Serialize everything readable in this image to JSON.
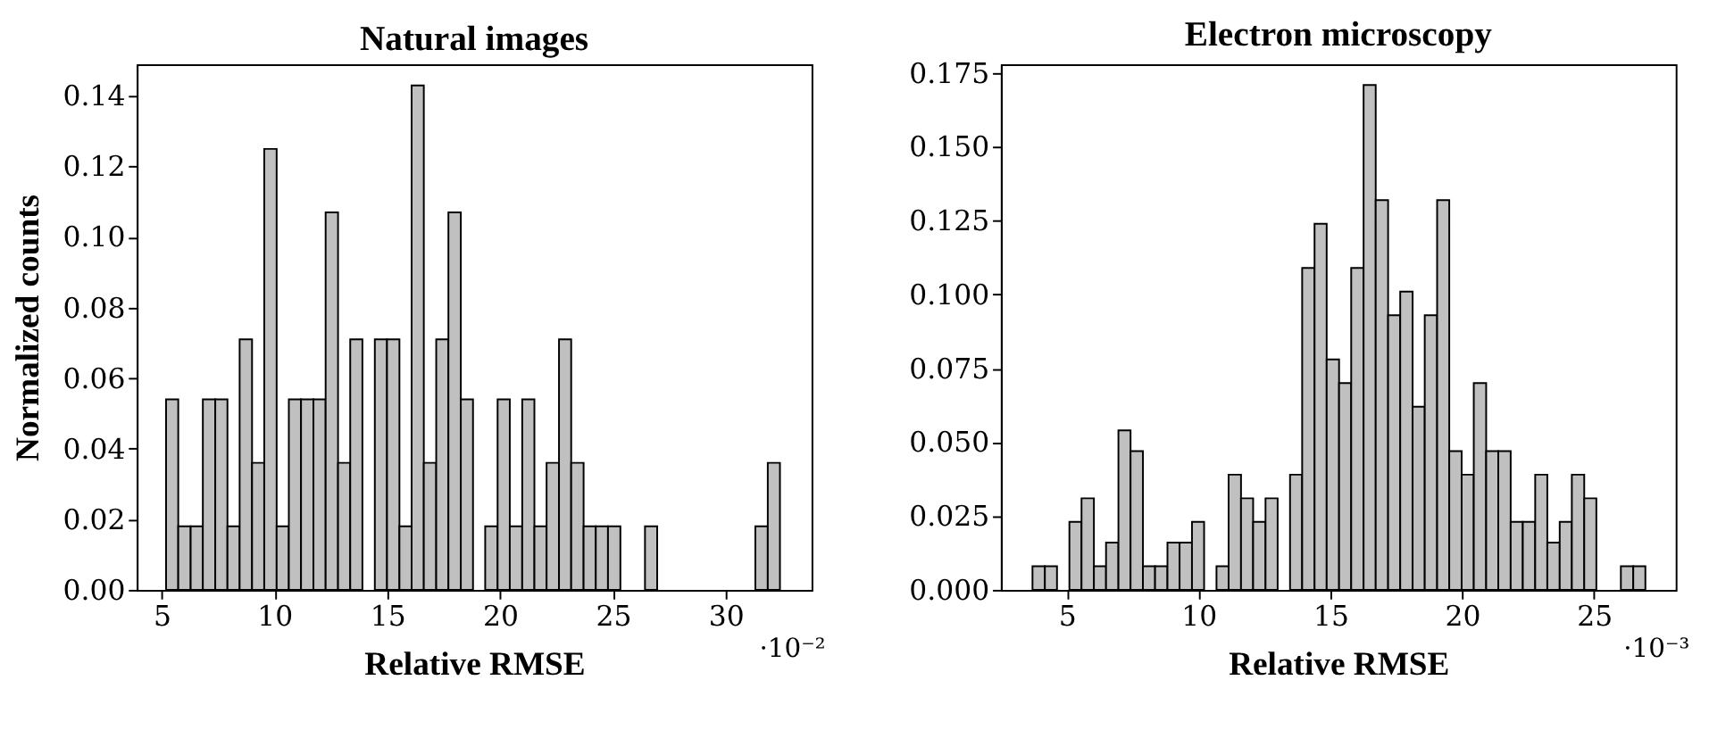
{
  "chart_data": [
    {
      "type": "histogram",
      "title": "Natural images",
      "xlabel": "Relative RMSE",
      "ylabel": "Normalized counts",
      "color": "#c0c0c0",
      "bins": [
        5.2,
        5.74,
        6.29,
        6.83,
        7.38,
        7.92,
        8.46,
        9.01,
        9.55,
        10.1,
        10.64,
        11.18,
        11.73,
        12.27,
        12.82,
        13.36,
        13.9,
        14.45,
        14.99,
        15.54,
        16.08,
        16.62,
        17.17,
        17.71,
        18.26,
        18.8,
        19.34,
        19.89,
        20.43,
        20.98,
        21.52,
        22.06,
        22.61,
        23.15,
        23.7,
        24.24,
        24.78,
        25.33,
        25.87,
        26.42,
        26.96,
        27.5,
        28.05,
        28.59,
        29.14,
        29.68,
        30.22,
        30.77,
        31.31,
        31.86,
        32.4
      ],
      "values": [
        0.054,
        0.018,
        0.018,
        0.054,
        0.054,
        0.018,
        0.071,
        0.036,
        0.125,
        0.018,
        0.054,
        0.054,
        0.054,
        0.107,
        0.036,
        0.071,
        0,
        0.071,
        0.071,
        0.018,
        0.143,
        0.036,
        0.071,
        0.107,
        0.054,
        0,
        0.018,
        0.054,
        0.018,
        0.054,
        0.018,
        0.036,
        0.071,
        0.036,
        0.018,
        0.018,
        0.018,
        0,
        0,
        0.018,
        0,
        0,
        0,
        0,
        0,
        0,
        0,
        0,
        0.018,
        0.036
      ],
      "xlim": [
        3.9,
        33.8
      ],
      "ylim": [
        0,
        0.149
      ],
      "xticks": [
        5,
        10,
        15,
        20,
        25,
        30
      ],
      "yticks": [
        {
          "value": 0,
          "label": "0.00"
        },
        {
          "value": 0.02,
          "label": "0.02"
        },
        {
          "value": 0.04,
          "label": "0.04"
        },
        {
          "value": 0.06,
          "label": "0.06"
        },
        {
          "value": 0.08,
          "label": "0.08"
        },
        {
          "value": 0.1,
          "label": "0.10"
        },
        {
          "value": 0.12,
          "label": "0.12"
        },
        {
          "value": 0.14,
          "label": "0.14"
        }
      ],
      "annotations": [
        "·10⁻²"
      ]
    },
    {
      "type": "histogram",
      "title": "Electron microscopy",
      "xlabel": "Relative RMSE",
      "color": "#c0c0c0",
      "bins": [
        3.7,
        4.17,
        4.63,
        5.1,
        5.56,
        6.03,
        6.49,
        6.96,
        7.42,
        7.89,
        8.35,
        8.82,
        9.28,
        9.75,
        10.21,
        10.68,
        11.14,
        11.61,
        12.07,
        12.54,
        13.0,
        13.47,
        13.93,
        14.4,
        14.86,
        15.33,
        15.79,
        16.26,
        16.72,
        17.19,
        17.65,
        18.12,
        18.58,
        19.05,
        19.51,
        19.98,
        20.44,
        20.91,
        21.37,
        21.84,
        22.3,
        22.77,
        23.23,
        23.7,
        24.16,
        24.63,
        25.09,
        25.56,
        26.02,
        26.49,
        26.95
      ],
      "values": [
        0.008,
        0.008,
        0,
        0.023,
        0.031,
        0.008,
        0.016,
        0.054,
        0.047,
        0.008,
        0.008,
        0.016,
        0.016,
        0.023,
        0,
        0.008,
        0.039,
        0.031,
        0.023,
        0.031,
        0,
        0.039,
        0.109,
        0.124,
        0.078,
        0.07,
        0.109,
        0.171,
        0.132,
        0.093,
        0.101,
        0.062,
        0.093,
        0.132,
        0.047,
        0.039,
        0.07,
        0.047,
        0.047,
        0.023,
        0.023,
        0.039,
        0.016,
        0.023,
        0.039,
        0.031,
        0,
        0,
        0.008,
        0.008
      ],
      "xlim": [
        2.5,
        28.1
      ],
      "ylim": [
        0,
        0.178
      ],
      "xticks": [
        5,
        10,
        15,
        20,
        25
      ],
      "yticks": [
        {
          "value": 0,
          "label": "0.000"
        },
        0.025,
        {
          "value": 0.05,
          "label": "0.050"
        },
        0.075,
        {
          "value": 0.1,
          "label": "0.100"
        },
        0.125,
        {
          "value": 0.15,
          "label": "0.150"
        },
        0.175
      ],
      "annotations": [
        "·10⁻³"
      ]
    }
  ]
}
